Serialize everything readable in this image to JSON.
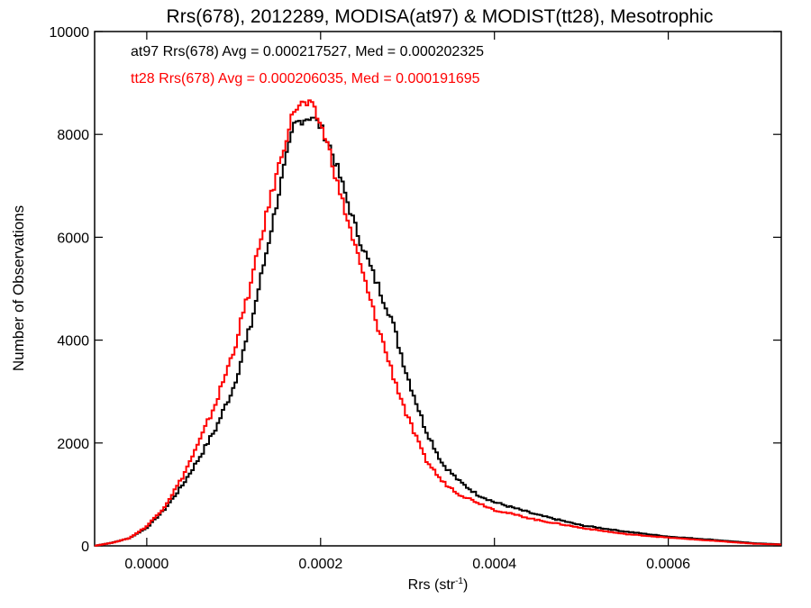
{
  "chart_data": {
    "type": "line",
    "title": "Rrs(678), 2012289, MODISA(at97) & MODIST(tt28), Mesotrophic",
    "xlabel_main": "Rrs (str",
    "xlabel_sup": "-1",
    "xlabel_close": ")",
    "ylabel": "Number of Observations",
    "xlim": [
      -6e-05,
      0.00073
    ],
    "ylim": [
      0,
      10000
    ],
    "xticks": [
      0.0,
      0.0002,
      0.0004,
      0.0006
    ],
    "xtick_labels": [
      "0.0000",
      "0.0002",
      "0.0004",
      "0.0006"
    ],
    "yticks": [
      0,
      2000,
      4000,
      6000,
      8000,
      10000
    ],
    "ytick_labels": [
      "0",
      "2000",
      "4000",
      "6000",
      "8000",
      "10000"
    ],
    "grid": false,
    "legend": "top-left",
    "annotations": [
      "at97 Rrs(678) Avg = 0.000217527, Med = 0.000202325",
      "tt28 Rrs(678) Avg = 0.000206035, Med = 0.000191695"
    ],
    "series": [
      {
        "color": "#000000",
        "x": [
          -6e-05,
          -4e-05,
          -2e-05,
          0.0,
          2e-05,
          4e-05,
          6e-05,
          8e-05,
          0.0001,
          0.00012,
          0.00014,
          0.00016,
          0.00017,
          0.00018,
          0.00019,
          0.0002,
          0.00021,
          0.00022,
          0.00024,
          0.00026,
          0.00028,
          0.0003,
          0.00032,
          0.00034,
          0.00036,
          0.00038,
          0.0004,
          0.00045,
          0.0005,
          0.00055,
          0.0006,
          0.00065,
          0.0007,
          0.00073
        ],
        "y": [
          0,
          60,
          150,
          350,
          700,
          1150,
          1700,
          2300,
          3100,
          4300,
          5900,
          7500,
          8200,
          8300,
          8350,
          8150,
          7800,
          7300,
          6200,
          5300,
          4500,
          3300,
          2300,
          1600,
          1250,
          1000,
          850,
          600,
          400,
          280,
          180,
          120,
          50,
          30
        ]
      },
      {
        "color": "#ff0000",
        "x": [
          -6e-05,
          -4e-05,
          -2e-05,
          0.0,
          2e-05,
          4e-05,
          6e-05,
          8e-05,
          0.0001,
          0.00012,
          0.00014,
          0.00016,
          0.00017,
          0.00018,
          0.00019,
          0.0002,
          0.00021,
          0.00022,
          0.00024,
          0.00026,
          0.00028,
          0.0003,
          0.00032,
          0.00034,
          0.00036,
          0.00038,
          0.0004,
          0.00045,
          0.0005,
          0.00055,
          0.0006,
          0.00065,
          0.0007,
          0.00073
        ],
        "y": [
          0,
          60,
          150,
          380,
          750,
          1300,
          2000,
          2800,
          3800,
          5100,
          6600,
          7900,
          8500,
          8600,
          8550,
          8200,
          7700,
          7000,
          5800,
          4600,
          3500,
          2500,
          1700,
          1250,
          1000,
          850,
          700,
          500,
          350,
          230,
          160,
          100,
          40,
          25
        ]
      }
    ]
  }
}
